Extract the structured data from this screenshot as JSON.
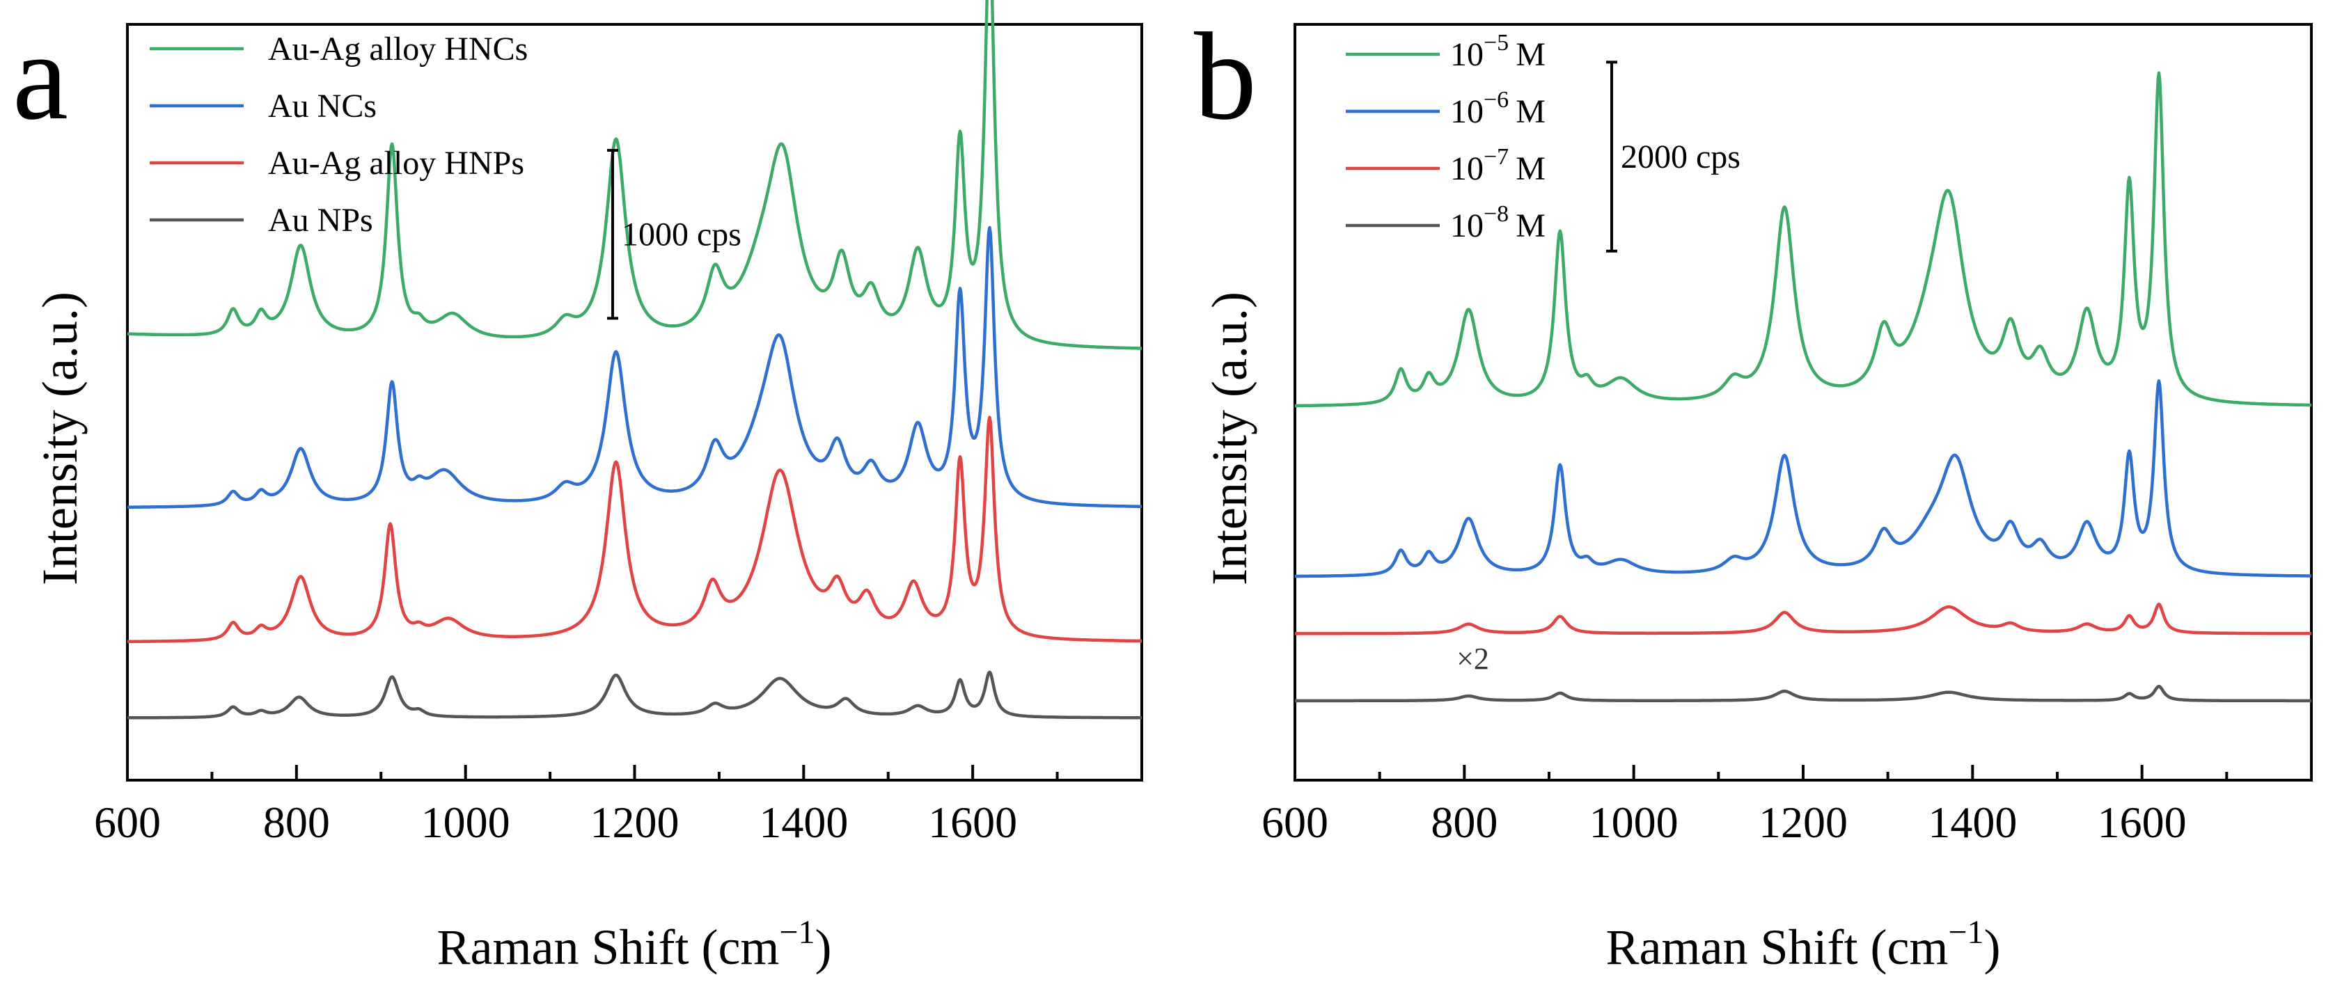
{
  "chart_data": [
    {
      "type": "line",
      "panel_label": "a",
      "xlabel": "Raman Shift (cm",
      "xlabel_sup": "−1",
      "xlabel_close": ")",
      "ylabel": "Intensity (a.u.)",
      "xlim": [
        600,
        1800
      ],
      "x_ticks": [
        600,
        800,
        1000,
        1200,
        1400,
        1600
      ],
      "x_tick_labels": [
        "600",
        "800",
        "1000",
        "1200",
        "1400",
        "1600"
      ],
      "ylim": [
        0,
        4500
      ],
      "y_ticks_shown": false,
      "grid": false,
      "legend_position": "top-left",
      "scale_bar": {
        "label": "1000 cps",
        "value": 1000,
        "y_center": 3250
      },
      "series": [
        {
          "name": "Au-Ag alloy HNCs",
          "color": "#3daa6a",
          "baseline": 2550,
          "decay": 100,
          "peaks": [
            [
              725,
              150,
              8
            ],
            [
              758,
              120,
              8
            ],
            [
              805,
              550,
              14
            ],
            [
              913,
              1150,
              8
            ],
            [
              945,
              60,
              8
            ],
            [
              985,
              150,
              22
            ],
            [
              1118,
              100,
              14
            ],
            [
              1178,
              1200,
              14
            ],
            [
              1295,
              330,
              12
            ],
            [
              1350,
              300,
              30
            ],
            [
              1375,
              1000,
              22
            ],
            [
              1445,
              420,
              12
            ],
            [
              1480,
              250,
              12
            ],
            [
              1535,
              520,
              13
            ],
            [
              1585,
              1150,
              7
            ],
            [
              1620,
              2400,
              7
            ]
          ]
        },
        {
          "name": "Au NCs",
          "color": "#2f6fd0",
          "baseline": 1620,
          "decay": 0,
          "peaks": [
            [
              725,
              80,
              8
            ],
            [
              758,
              70,
              8
            ],
            [
              805,
              340,
              14
            ],
            [
              913,
              710,
              8
            ],
            [
              945,
              60,
              8
            ],
            [
              975,
              200,
              24
            ],
            [
              1118,
              90,
              14
            ],
            [
              1178,
              900,
              14
            ],
            [
              1295,
              270,
              12
            ],
            [
              1350,
              230,
              30
            ],
            [
              1372,
              850,
              22
            ],
            [
              1440,
              280,
              12
            ],
            [
              1480,
              180,
              12
            ],
            [
              1535,
              440,
              13
            ],
            [
              1585,
              1200,
              7
            ],
            [
              1620,
              1600,
              7
            ]
          ]
        },
        {
          "name": "Au-Ag alloy HNPs",
          "color": "#e04444",
          "baseline": 820,
          "decay": 0,
          "peaks": [
            [
              725,
              100,
              8
            ],
            [
              758,
              60,
              8
            ],
            [
              805,
              380,
              14
            ],
            [
              911,
              680,
              8
            ],
            [
              945,
              40,
              8
            ],
            [
              980,
              120,
              22
            ],
            [
              1178,
              1050,
              14
            ],
            [
              1292,
              260,
              12
            ],
            [
              1372,
              1000,
              26
            ],
            [
              1440,
              230,
              12
            ],
            [
              1475,
              200,
              12
            ],
            [
              1530,
              300,
              13
            ],
            [
              1585,
              1020,
              7
            ],
            [
              1620,
              1280,
              7
            ]
          ]
        },
        {
          "name": "Au NPs",
          "color": "#555555",
          "baseline": 370,
          "decay": 0,
          "peaks": [
            [
              725,
              60,
              8
            ],
            [
              758,
              30,
              8
            ],
            [
              803,
              120,
              14
            ],
            [
              913,
              240,
              10
            ],
            [
              945,
              30,
              8
            ],
            [
              1178,
              250,
              14
            ],
            [
              1295,
              60,
              12
            ],
            [
              1372,
              230,
              26
            ],
            [
              1450,
              90,
              12
            ],
            [
              1535,
              60,
              13
            ],
            [
              1585,
              210,
              7
            ],
            [
              1620,
              260,
              7
            ]
          ]
        }
      ]
    },
    {
      "type": "line",
      "panel_label": "b",
      "xlabel": "Raman Shift (cm",
      "xlabel_sup": "−1",
      "xlabel_close": ")",
      "ylabel": "Intensity (a.u.)",
      "xlim": [
        600,
        1800
      ],
      "x_ticks": [
        600,
        800,
        1000,
        1200,
        1400,
        1600
      ],
      "x_tick_labels": [
        "600",
        "800",
        "1000",
        "1200",
        "1400",
        "1600"
      ],
      "ylim": [
        0,
        8000
      ],
      "y_ticks_shown": false,
      "grid": false,
      "legend_position": "top-left",
      "scale_bar": {
        "label": "2000 cps",
        "value": 2000,
        "y_center": 6600
      },
      "annotation": {
        "text": "×2",
        "x": 810,
        "y": 1180
      },
      "series": [
        {
          "name_base": "10",
          "name_exp": "−5",
          "name_unit": "M",
          "name": "10^-5 M",
          "color": "#3daa6a",
          "baseline": 3950,
          "decay": 0,
          "peaks": [
            [
              725,
              350,
              8
            ],
            [
              758,
              250,
              8
            ],
            [
              805,
              1000,
              14
            ],
            [
              913,
              1800,
              8
            ],
            [
              945,
              150,
              8
            ],
            [
              985,
              250,
              22
            ],
            [
              1118,
              200,
              14
            ],
            [
              1178,
              2050,
              14
            ],
            [
              1295,
              600,
              12
            ],
            [
              1350,
              500,
              30
            ],
            [
              1372,
              1900,
              22
            ],
            [
              1445,
              650,
              12
            ],
            [
              1480,
              400,
              12
            ],
            [
              1535,
              900,
              13
            ],
            [
              1585,
              2200,
              7
            ],
            [
              1620,
              3400,
              7
            ]
          ]
        },
        {
          "name_base": "10",
          "name_exp": "−6",
          "name_unit": "M",
          "name": "10^-6 M",
          "color": "#2f6fd0",
          "baseline": 2150,
          "decay": 0,
          "peaks": [
            [
              725,
              250,
              8
            ],
            [
              758,
              200,
              8
            ],
            [
              805,
              600,
              14
            ],
            [
              913,
              1150,
              8
            ],
            [
              945,
              100,
              8
            ],
            [
              985,
              150,
              22
            ],
            [
              1118,
              130,
              14
            ],
            [
              1178,
              1250,
              14
            ],
            [
              1295,
              350,
              12
            ],
            [
              1350,
              300,
              30
            ],
            [
              1380,
              1100,
              22
            ],
            [
              1445,
              400,
              12
            ],
            [
              1480,
              250,
              12
            ],
            [
              1535,
              500,
              13
            ],
            [
              1585,
              1200,
              7
            ],
            [
              1620,
              2000,
              7
            ]
          ]
        },
        {
          "name_base": "10",
          "name_exp": "−7",
          "name_unit": "M",
          "name": "10^-7 M",
          "color": "#e04444",
          "baseline": 1550,
          "decay": 0,
          "peaks": [
            [
              805,
              100,
              14
            ],
            [
              913,
              180,
              10
            ],
            [
              1178,
              220,
              14
            ],
            [
              1372,
              280,
              26
            ],
            [
              1445,
              80,
              12
            ],
            [
              1535,
              90,
              13
            ],
            [
              1585,
              170,
              7
            ],
            [
              1620,
              300,
              7
            ]
          ]
        },
        {
          "name_base": "10",
          "name_exp": "−8",
          "name_unit": "M",
          "name": "10^-8 M",
          "color": "#555555",
          "baseline": 840,
          "decay": 0,
          "peaks": [
            [
              805,
              50,
              14
            ],
            [
              913,
              80,
              10
            ],
            [
              1178,
              100,
              14
            ],
            [
              1372,
              90,
              26
            ],
            [
              1585,
              70,
              7
            ],
            [
              1620,
              150,
              7
            ]
          ]
        }
      ]
    }
  ]
}
